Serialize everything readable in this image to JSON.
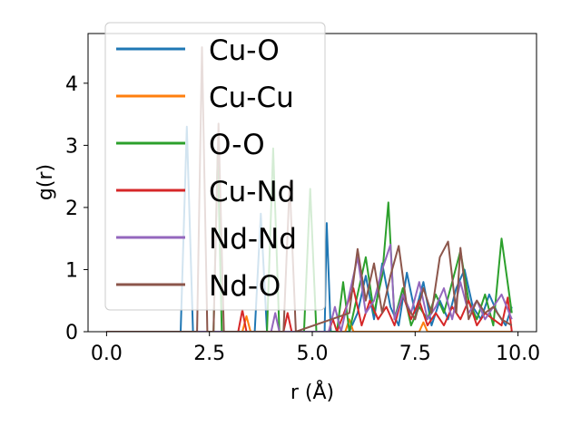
{
  "chart_data": {
    "type": "line",
    "xlabel": "r (Å)",
    "ylabel": "g(r)",
    "xlim": [
      -0.45,
      10.45
    ],
    "ylim": [
      0,
      4.8
    ],
    "xticks": [
      0.0,
      2.5,
      5.0,
      7.5,
      10.0
    ],
    "xtick_labels": [
      "0.0",
      "2.5",
      "5.0",
      "7.5",
      "10.0"
    ],
    "yticks": [
      0,
      1,
      2,
      3,
      4
    ],
    "ytick_labels": [
      "0",
      "1",
      "2",
      "3",
      "4"
    ],
    "grid": false,
    "legend_position": "top-left",
    "series": [
      {
        "name": "Cu-O",
        "color": "#1f77b4",
        "x": [
          0,
          1.8,
          1.95,
          2.1,
          3.0,
          3.6,
          3.75,
          3.9,
          4.8,
          5.3,
          5.35,
          5.45,
          5.9,
          6.1,
          6.3,
          6.5,
          6.7,
          6.9,
          7.1,
          7.3,
          7.5,
          7.7,
          7.9,
          8.1,
          8.3,
          8.5,
          8.7,
          8.9,
          9.1,
          9.3,
          9.5,
          9.7,
          9.85
        ],
        "y": [
          0,
          0,
          3.3,
          0,
          0,
          0,
          1.9,
          0,
          0,
          0,
          1.75,
          0,
          0,
          0.3,
          0.9,
          0.2,
          1.1,
          0.4,
          0.1,
          0.95,
          0.3,
          0.8,
          0.1,
          0.5,
          0.2,
          0.7,
          1.0,
          0.4,
          0.2,
          0.6,
          0.3,
          0.1,
          0.4
        ]
      },
      {
        "name": "Cu-Cu",
        "color": "#ff7f0e",
        "x": [
          0,
          3.3,
          3.4,
          3.5,
          5.8,
          5.9,
          6.0,
          7.6,
          7.7,
          7.8,
          9.85
        ],
        "y": [
          0,
          0,
          0.25,
          0,
          0,
          0.2,
          0,
          0,
          0.15,
          0,
          0
        ]
      },
      {
        "name": "O-O",
        "color": "#2ca02c",
        "x": [
          0,
          2.6,
          2.7,
          2.8,
          3.9,
          4.05,
          4.2,
          4.8,
          4.95,
          5.1,
          5.6,
          5.75,
          5.9,
          6.1,
          6.3,
          6.5,
          6.7,
          6.85,
          7.0,
          7.2,
          7.4,
          7.6,
          7.8,
          8.0,
          8.2,
          8.4,
          8.6,
          8.8,
          9.0,
          9.2,
          9.4,
          9.6,
          9.85
        ],
        "y": [
          0,
          0,
          2.9,
          0,
          0,
          2.95,
          0,
          0,
          2.3,
          0,
          0,
          0.8,
          0,
          0.6,
          1.2,
          0.3,
          0.9,
          2.08,
          0.2,
          0.7,
          0.1,
          0.4,
          0.2,
          0.6,
          0.3,
          0.8,
          1.3,
          0.5,
          0.2,
          0.6,
          0.1,
          1.5,
          0.3
        ]
      },
      {
        "name": "Cu-Nd",
        "color": "#d62728",
        "x": [
          0,
          3.2,
          3.3,
          3.4,
          4.3,
          4.4,
          4.5,
          5.4,
          5.5,
          5.6,
          6.0,
          6.2,
          6.4,
          6.6,
          6.8,
          7.0,
          7.2,
          7.4,
          7.6,
          7.8,
          8.0,
          8.2,
          8.4,
          8.6,
          8.8,
          9.0,
          9.2,
          9.4,
          9.6,
          9.75,
          9.85
        ],
        "y": [
          0,
          0,
          0.35,
          0,
          0,
          0.3,
          0,
          0,
          0.2,
          0,
          0.7,
          0.1,
          0.5,
          0.2,
          0.4,
          0.1,
          0.6,
          0.2,
          0.5,
          0.1,
          0.3,
          0.1,
          0.4,
          0.2,
          0.5,
          0.1,
          0.3,
          0.2,
          0.1,
          0.55,
          0
        ]
      },
      {
        "name": "Nd-Nd",
        "color": "#9467bd",
        "x": [
          0,
          4.0,
          4.1,
          4.2,
          5.4,
          5.55,
          5.7,
          6.1,
          6.3,
          6.5,
          6.7,
          6.9,
          7.0,
          7.2,
          7.4,
          7.6,
          7.8,
          8.0,
          8.2,
          8.4,
          8.6,
          8.8,
          9.0,
          9.2,
          9.4,
          9.6,
          9.85
        ],
        "y": [
          0,
          0,
          0.3,
          0,
          0,
          0.4,
          0,
          1.2,
          0.3,
          0.5,
          1.0,
          1.4,
          0.2,
          0.6,
          0.3,
          0.8,
          0.2,
          0.4,
          0.7,
          0.2,
          0.8,
          0.3,
          0.5,
          0.2,
          0.4,
          0.6,
          0.2
        ]
      },
      {
        "name": "Nd-O",
        "color": "#8c564b",
        "x": [
          0,
          2.2,
          2.32,
          2.45,
          2.6,
          2.72,
          2.85,
          4.3,
          4.45,
          4.6,
          5.9,
          6.1,
          6.3,
          6.5,
          6.7,
          6.9,
          7.1,
          7.3,
          7.5,
          7.7,
          7.9,
          8.1,
          8.3,
          8.5,
          8.6,
          8.8,
          9.0,
          9.2,
          9.4,
          9.6,
          9.85
        ],
        "y": [
          0,
          0,
          4.58,
          0,
          0,
          3.35,
          0,
          0,
          2.4,
          0,
          0.3,
          1.33,
          0.5,
          1.1,
          0.3,
          0.9,
          1.38,
          0.4,
          0.2,
          0.7,
          0.3,
          1.2,
          1.45,
          0.3,
          1.35,
          0.2,
          0.5,
          0.3,
          0.4,
          0.2,
          0.1
        ]
      }
    ]
  }
}
